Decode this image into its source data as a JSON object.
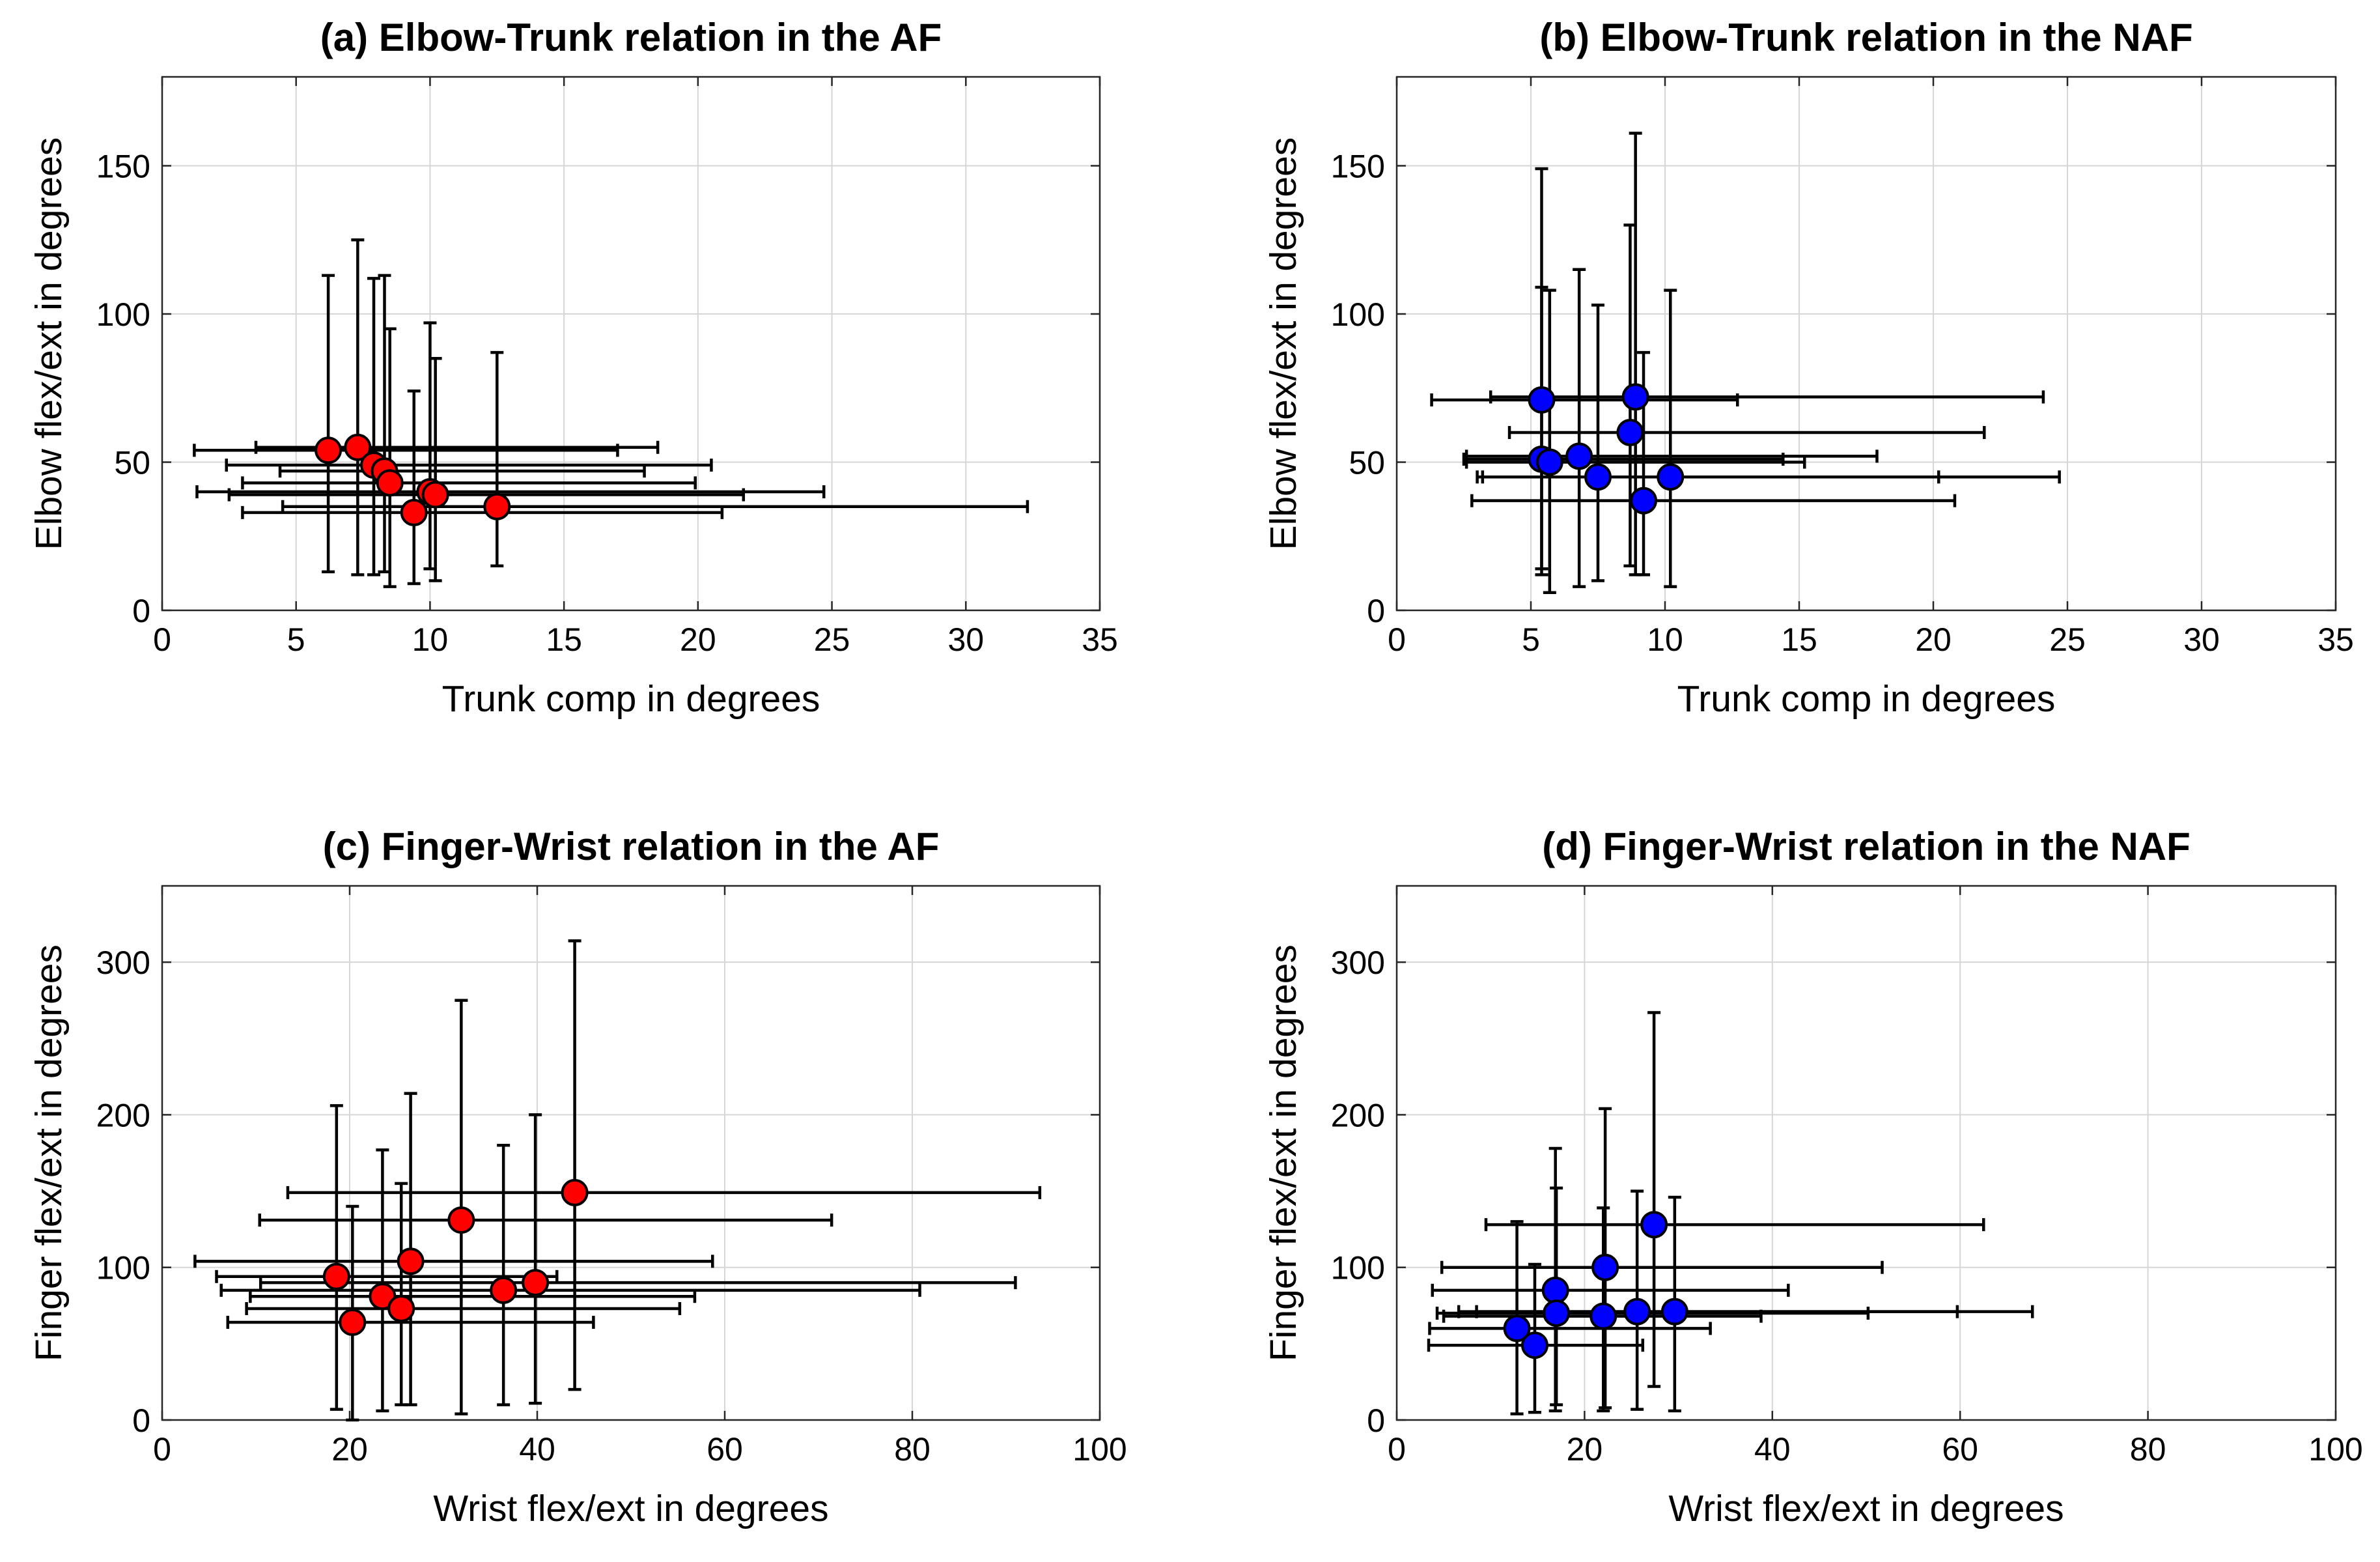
{
  "colors": {
    "af": "#ff0000",
    "naf": "#0000ff",
    "grid": "#d6d6d6",
    "axes": "#262626"
  },
  "chart_data": [
    {
      "id": "a",
      "type": "scatter",
      "title": "(a) Elbow-Trunk relation in the AF",
      "xlabel": "Trunk comp in degrees",
      "ylabel": "Elbow flex/ext in degrees",
      "xlim": [
        0,
        35
      ],
      "ylim": [
        0,
        180
      ],
      "xticks": [
        0,
        5,
        10,
        15,
        20,
        25,
        30,
        35
      ],
      "yticks": [
        0,
        50,
        100,
        150
      ],
      "xtick_labels": [
        "0",
        "5",
        "10",
        "15",
        "20",
        "25",
        "30",
        "35"
      ],
      "ytick_labels": [
        "0",
        "50",
        "100",
        "150"
      ],
      "grid": true,
      "marker_color_key": "af",
      "points": [
        {
          "x": 6.2,
          "y": 54,
          "xlo": 1.2,
          "xhi": 17.0,
          "ylo": 13,
          "yhi": 113
        },
        {
          "x": 7.3,
          "y": 55,
          "xlo": 3.5,
          "xhi": 18.5,
          "ylo": 12,
          "yhi": 125
        },
        {
          "x": 7.9,
          "y": 49,
          "xlo": 2.4,
          "xhi": 20.5,
          "ylo": 12,
          "yhi": 112
        },
        {
          "x": 8.3,
          "y": 47,
          "xlo": 4.4,
          "xhi": 18.0,
          "ylo": 13,
          "yhi": 113
        },
        {
          "x": 8.5,
          "y": 43,
          "xlo": 3.0,
          "xhi": 19.9,
          "ylo": 8,
          "yhi": 95
        },
        {
          "x": 10.0,
          "y": 40,
          "xlo": 1.3,
          "xhi": 24.7,
          "ylo": 14,
          "yhi": 97
        },
        {
          "x": 10.2,
          "y": 39,
          "xlo": 2.5,
          "xhi": 21.7,
          "ylo": 10,
          "yhi": 85
        },
        {
          "x": 9.4,
          "y": 33,
          "xlo": 3.0,
          "xhi": 20.9,
          "ylo": 9,
          "yhi": 74
        },
        {
          "x": 12.5,
          "y": 35,
          "xlo": 4.5,
          "xhi": 32.3,
          "ylo": 15,
          "yhi": 87
        }
      ]
    },
    {
      "id": "b",
      "type": "scatter",
      "title": "(b) Elbow-Trunk relation in the NAF",
      "xlabel": "Trunk comp in degrees",
      "ylabel": "Elbow flex/ext in degrees",
      "xlim": [
        0,
        35
      ],
      "ylim": [
        0,
        180
      ],
      "xticks": [
        0,
        5,
        10,
        15,
        20,
        25,
        30,
        35
      ],
      "yticks": [
        0,
        50,
        100,
        150
      ],
      "xtick_labels": [
        "0",
        "5",
        "10",
        "15",
        "20",
        "25",
        "30",
        "35"
      ],
      "ytick_labels": [
        "0",
        "50",
        "100",
        "150"
      ],
      "grid": true,
      "marker_color_key": "naf",
      "points": [
        {
          "x": 5.4,
          "y": 71,
          "xlo": 1.3,
          "xhi": 12.7,
          "ylo": 14,
          "yhi": 149
        },
        {
          "x": 8.9,
          "y": 72,
          "xlo": 3.5,
          "xhi": 24.1,
          "ylo": 12,
          "yhi": 161
        },
        {
          "x": 8.7,
          "y": 60,
          "xlo": 4.2,
          "xhi": 21.9,
          "ylo": 15,
          "yhi": 130
        },
        {
          "x": 5.4,
          "y": 51,
          "xlo": 2.5,
          "xhi": 14.4,
          "ylo": 12,
          "yhi": 109
        },
        {
          "x": 5.7,
          "y": 50,
          "xlo": 2.6,
          "xhi": 15.2,
          "ylo": 6,
          "yhi": 108
        },
        {
          "x": 6.8,
          "y": 52,
          "xlo": 2.6,
          "xhi": 17.9,
          "ylo": 8,
          "yhi": 115
        },
        {
          "x": 7.5,
          "y": 45,
          "xlo": 3.2,
          "xhi": 20.2,
          "ylo": 10,
          "yhi": 103
        },
        {
          "x": 10.2,
          "y": 45,
          "xlo": 3.0,
          "xhi": 24.7,
          "ylo": 8,
          "yhi": 108
        },
        {
          "x": 9.2,
          "y": 37,
          "xlo": 2.8,
          "xhi": 20.8,
          "ylo": 12,
          "yhi": 87
        }
      ]
    },
    {
      "id": "c",
      "type": "scatter",
      "title": "(c) Finger-Wrist relation in the AF",
      "xlabel": "Wrist flex/ext in degrees",
      "ylabel": "Finger flex/ext in degrees",
      "xlim": [
        0,
        100
      ],
      "ylim": [
        0,
        350
      ],
      "xticks": [
        0,
        20,
        40,
        60,
        80,
        100
      ],
      "yticks": [
        0,
        100,
        200,
        300
      ],
      "xtick_labels": [
        "0",
        "20",
        "40",
        "60",
        "80",
        "100"
      ],
      "ytick_labels": [
        "0",
        "100",
        "200",
        "300"
      ],
      "grid": true,
      "marker_color_key": "af",
      "points": [
        {
          "x": 44.0,
          "y": 149,
          "xlo": 13.4,
          "xhi": 93.6,
          "ylo": 20,
          "yhi": 314
        },
        {
          "x": 31.9,
          "y": 131,
          "xlo": 10.4,
          "xhi": 71.4,
          "ylo": 4,
          "yhi": 275
        },
        {
          "x": 26.5,
          "y": 104,
          "xlo": 3.5,
          "xhi": 58.7,
          "ylo": 10,
          "yhi": 214
        },
        {
          "x": 18.6,
          "y": 94,
          "xlo": 5.8,
          "xhi": 42.1,
          "ylo": 7,
          "yhi": 206
        },
        {
          "x": 39.8,
          "y": 90,
          "xlo": 10.5,
          "xhi": 91.0,
          "ylo": 11,
          "yhi": 200
        },
        {
          "x": 36.4,
          "y": 85,
          "xlo": 6.3,
          "xhi": 80.8,
          "ylo": 10,
          "yhi": 180
        },
        {
          "x": 23.5,
          "y": 81,
          "xlo": 9.4,
          "xhi": 56.8,
          "ylo": 6,
          "yhi": 177
        },
        {
          "x": 25.5,
          "y": 73,
          "xlo": 9.0,
          "xhi": 55.2,
          "ylo": 10,
          "yhi": 155
        },
        {
          "x": 20.3,
          "y": 64,
          "xlo": 7.0,
          "xhi": 46.0,
          "ylo": 0,
          "yhi": 140
        }
      ]
    },
    {
      "id": "d",
      "type": "scatter",
      "title": "(d) Finger-Wrist relation in the NAF",
      "xlabel": "Wrist flex/ext in degrees",
      "ylabel": "Finger flex/ext in degrees",
      "xlim": [
        0,
        100
      ],
      "ylim": [
        0,
        350
      ],
      "xticks": [
        0,
        20,
        40,
        60,
        80,
        100
      ],
      "yticks": [
        0,
        100,
        200,
        300
      ],
      "xtick_labels": [
        "0",
        "20",
        "40",
        "60",
        "80",
        "100"
      ],
      "ytick_labels": [
        "0",
        "100",
        "200",
        "300"
      ],
      "grid": true,
      "marker_color_key": "naf",
      "points": [
        {
          "x": 27.4,
          "y": 128,
          "xlo": 9.5,
          "xhi": 62.5,
          "ylo": 22,
          "yhi": 267
        },
        {
          "x": 22.2,
          "y": 100,
          "xlo": 4.8,
          "xhi": 51.7,
          "ylo": 8,
          "yhi": 204
        },
        {
          "x": 16.9,
          "y": 85,
          "xlo": 3.8,
          "xhi": 41.7,
          "ylo": 6,
          "yhi": 178
        },
        {
          "x": 17.0,
          "y": 70,
          "xlo": 4.3,
          "xhi": 50.2,
          "ylo": 10,
          "yhi": 152
        },
        {
          "x": 22.0,
          "y": 68,
          "xlo": 5.0,
          "xhi": 38.8,
          "ylo": 6,
          "yhi": 139
        },
        {
          "x": 25.6,
          "y": 71,
          "xlo": 8.5,
          "xhi": 59.7,
          "ylo": 7,
          "yhi": 150
        },
        {
          "x": 29.6,
          "y": 71,
          "xlo": 6.6,
          "xhi": 67.7,
          "ylo": 6,
          "yhi": 146
        },
        {
          "x": 12.8,
          "y": 60,
          "xlo": 3.5,
          "xhi": 33.4,
          "ylo": 4,
          "yhi": 130
        },
        {
          "x": 14.7,
          "y": 49,
          "xlo": 3.4,
          "xhi": 26.2,
          "ylo": 5,
          "yhi": 102
        }
      ]
    }
  ]
}
